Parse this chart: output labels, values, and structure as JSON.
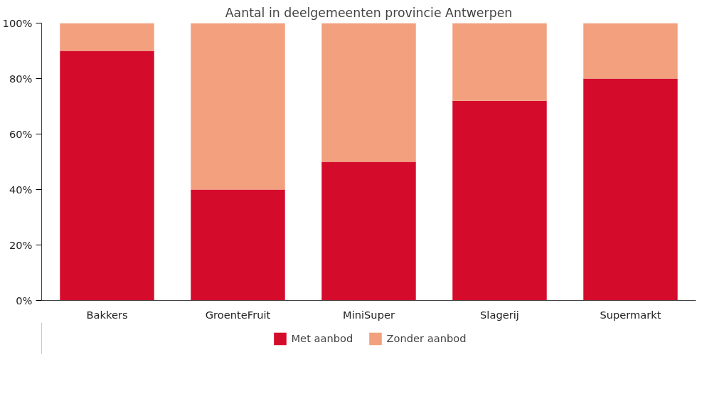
{
  "chart_data": {
    "type": "bar",
    "title": "Aantal in deelgemeenten provincie Antwerpen",
    "categories": [
      "Bakkers",
      "GroenteFruit",
      "MiniSuper",
      "Slagerij",
      "Supermarkt"
    ],
    "stacked": true,
    "series": [
      {
        "name": "Met aanbod",
        "color": "#d50b2b",
        "values": [
          90,
          40,
          50,
          72,
          80
        ]
      },
      {
        "name": "Zonder aanbod",
        "color": "#f2a07e",
        "values": [
          10,
          60,
          50,
          28,
          20
        ]
      }
    ],
    "ylim": [
      0,
      100
    ],
    "yticks": [
      {
        "value": 0,
        "label": "0%"
      },
      {
        "value": 20,
        "label": "20%"
      },
      {
        "value": 40,
        "label": "40%"
      },
      {
        "value": 60,
        "label": "60%"
      },
      {
        "value": 80,
        "label": "80%"
      },
      {
        "value": 100,
        "label": "100%"
      }
    ],
    "grid": false,
    "legend": "bottom"
  }
}
